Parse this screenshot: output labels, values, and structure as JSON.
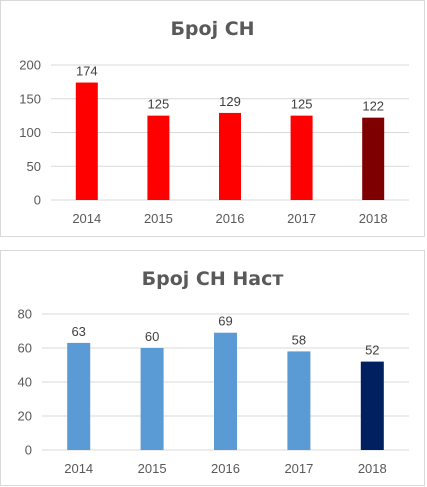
{
  "chart_data": [
    {
      "type": "bar",
      "title": "Број СН",
      "categories": [
        "2014",
        "2015",
        "2016",
        "2017",
        "2018"
      ],
      "values": [
        174,
        125,
        129,
        125,
        122
      ],
      "ylim": [
        0,
        200
      ],
      "yticks": [
        0,
        50,
        100,
        150,
        200
      ],
      "data_labels": [
        "174",
        "125",
        "129",
        "125",
        "122"
      ],
      "grid": true,
      "colors": [
        "#ff0000",
        "#ff0000",
        "#ff0000",
        "#ff0000",
        "#7f0000"
      ]
    },
    {
      "type": "bar",
      "title": "Број СН Наст",
      "categories": [
        "2014",
        "2015",
        "2016",
        "2017",
        "2018"
      ],
      "values": [
        63,
        60,
        69,
        58,
        52
      ],
      "ylim": [
        0,
        80
      ],
      "yticks": [
        0,
        20,
        40,
        60,
        80
      ],
      "data_labels": [
        "63",
        "60",
        "69",
        "58",
        "52"
      ],
      "grid": true,
      "colors": [
        "#5b9bd5",
        "#5b9bd5",
        "#5b9bd5",
        "#5b9bd5",
        "#002060"
      ]
    }
  ]
}
